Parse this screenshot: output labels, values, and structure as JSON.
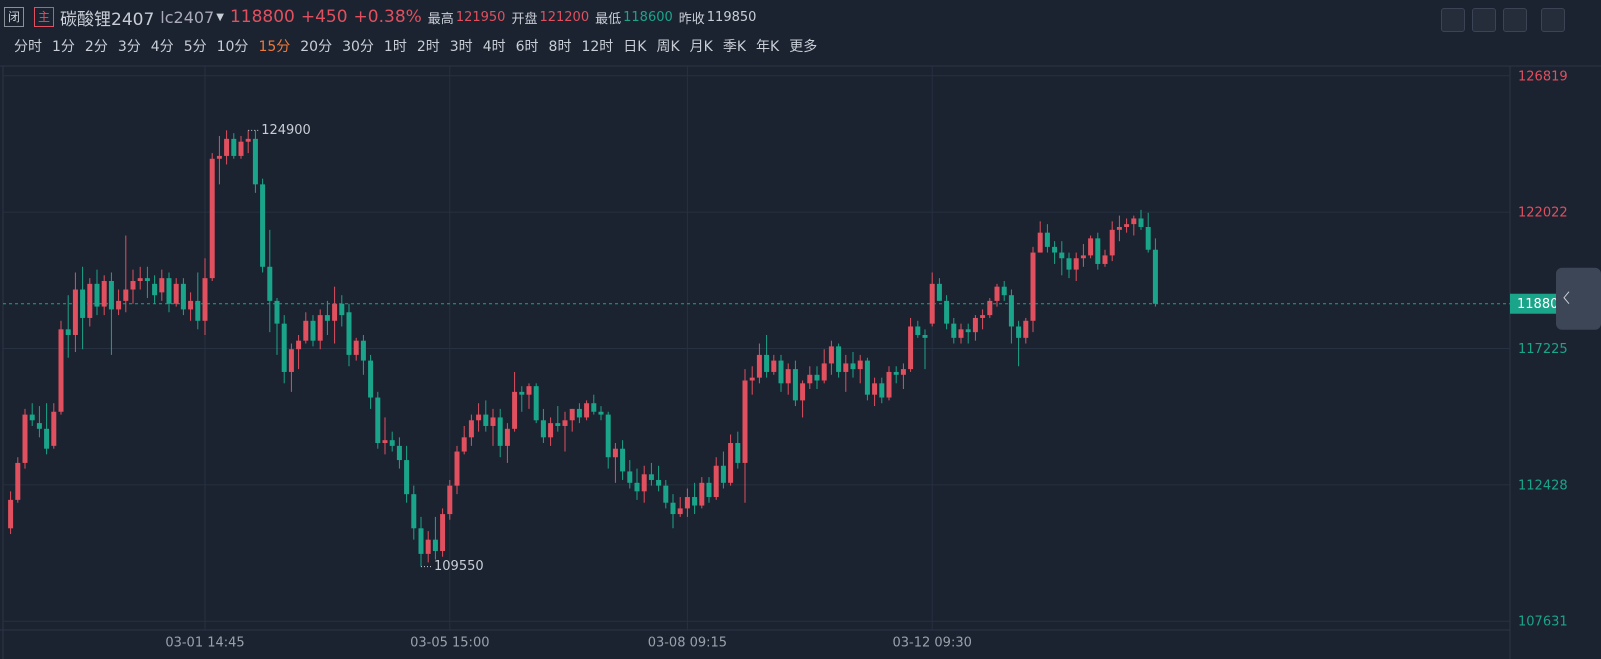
{
  "header": {
    "badges": [
      "闭",
      "主"
    ],
    "name": "碳酸锂2407",
    "code": "lc2407",
    "price": 118800,
    "change": "+450",
    "pct": "+0.38%",
    "stats": [
      {
        "label": "最高",
        "value": 121950
      },
      {
        "label": "开盘",
        "value": 121200
      },
      {
        "label": "最低",
        "value": 118600
      },
      {
        "label": "昨收",
        "value": 119850
      }
    ],
    "periods": [
      "分时",
      "1分",
      "2分",
      "3分",
      "4分",
      "5分",
      "10分",
      "15分",
      "20分",
      "30分",
      "1时",
      "2时",
      "3时",
      "4时",
      "6时",
      "8时",
      "12时",
      "日K",
      "周K",
      "月K",
      "季K",
      "年K",
      "更多"
    ],
    "active_period": 7
  },
  "chart_data": {
    "type": "candlestick",
    "up_color": "#e0505f",
    "down_color": "#1aa58a",
    "grid": true,
    "ylim": [
      107322,
      127093
    ],
    "yticks": [
      126819,
      122022,
      117225,
      112428,
      107631
    ],
    "last_price": 118800,
    "annotations": [
      {
        "index": 33,
        "value": 124900
      },
      {
        "index": 57,
        "value": 109550
      }
    ],
    "categories": [
      null,
      null,
      null,
      null,
      null,
      null,
      null,
      null,
      null,
      null,
      null,
      null,
      null,
      null,
      null,
      null,
      null,
      null,
      null,
      null,
      null,
      null,
      null,
      null,
      null,
      null,
      null,
      "03-01 14:45",
      null,
      null,
      null,
      null,
      null,
      null,
      null,
      null,
      null,
      null,
      null,
      null,
      null,
      null,
      null,
      null,
      null,
      null,
      null,
      null,
      null,
      null,
      null,
      null,
      null,
      null,
      null,
      null,
      null,
      null,
      null,
      null,
      null,
      "03-05 15:00",
      null,
      null,
      null,
      null,
      null,
      null,
      null,
      null,
      null,
      null,
      null,
      null,
      null,
      null,
      null,
      null,
      null,
      null,
      null,
      null,
      null,
      null,
      null,
      null,
      null,
      null,
      null,
      null,
      null,
      null,
      null,
      null,
      "03-08 09:15",
      null,
      null,
      null,
      null,
      null,
      null,
      null,
      null,
      null,
      null,
      null,
      null,
      null,
      null,
      null,
      null,
      null,
      null,
      null,
      null,
      null,
      null,
      null,
      null,
      null,
      null,
      null,
      null,
      null,
      null,
      null,
      null,
      null,
      "03-12 09:30",
      null,
      null,
      null,
      null,
      null,
      null,
      null,
      null,
      null,
      null,
      null,
      null,
      null,
      null,
      null,
      null,
      null,
      null,
      null,
      null,
      null,
      null,
      null,
      null,
      null,
      null,
      null,
      null,
      null,
      null
    ],
    "candles": [
      [
        110900,
        112200,
        110700,
        111900
      ],
      [
        111900,
        113400,
        111800,
        113200
      ],
      [
        113200,
        115100,
        113000,
        114900
      ],
      [
        114900,
        115300,
        114500,
        114700
      ],
      [
        114600,
        115200,
        114100,
        114400
      ],
      [
        114400,
        115300,
        113500,
        113700
      ],
      [
        113800,
        115300,
        113700,
        115000
      ],
      [
        115000,
        118200,
        114900,
        117900
      ],
      [
        117900,
        119100,
        116900,
        117700
      ],
      [
        117700,
        119900,
        117100,
        119300
      ],
      [
        119300,
        120100,
        117200,
        118300
      ],
      [
        118300,
        119700,
        118000,
        119500
      ],
      [
        119500,
        120000,
        118400,
        118700
      ],
      [
        118700,
        119800,
        118400,
        119600
      ],
      [
        119600,
        119900,
        117000,
        118600
      ],
      [
        118600,
        119300,
        118400,
        118900
      ],
      [
        118900,
        121200,
        118500,
        119300
      ],
      [
        119300,
        120000,
        118800,
        119600
      ],
      [
        119600,
        120100,
        119300,
        119700
      ],
      [
        119700,
        120100,
        119000,
        119600
      ],
      [
        119500,
        119800,
        118800,
        119100
      ],
      [
        119200,
        120000,
        118900,
        119700
      ],
      [
        119700,
        119900,
        118500,
        118800
      ],
      [
        118800,
        119700,
        118700,
        119500
      ],
      [
        119500,
        119700,
        118400,
        118600
      ],
      [
        118600,
        119200,
        118200,
        118900
      ],
      [
        118900,
        119900,
        117900,
        118200
      ],
      [
        118200,
        120400,
        117700,
        119700
      ],
      [
        119700,
        124100,
        119600,
        123900
      ],
      [
        123900,
        124700,
        123000,
        124000
      ],
      [
        124000,
        124900,
        123700,
        124600
      ],
      [
        124600,
        124800,
        123900,
        124000
      ],
      [
        124000,
        124700,
        123900,
        124500
      ],
      [
        124500,
        124900,
        124100,
        124600
      ],
      [
        124600,
        124900,
        122700,
        123000
      ],
      [
        123000,
        123200,
        119900,
        120100
      ],
      [
        120100,
        121400,
        117800,
        118900
      ],
      [
        118900,
        119000,
        117000,
        118100
      ],
      [
        118100,
        118400,
        116000,
        116400
      ],
      [
        116400,
        117400,
        115700,
        117200
      ],
      [
        117200,
        117700,
        116500,
        117500
      ],
      [
        117500,
        118500,
        117400,
        118200
      ],
      [
        118200,
        118400,
        117300,
        117500
      ],
      [
        117500,
        118600,
        117200,
        118400
      ],
      [
        118400,
        118900,
        117700,
        118200
      ],
      [
        118200,
        119400,
        117400,
        118800
      ],
      [
        118800,
        119100,
        118000,
        118400
      ],
      [
        118500,
        118800,
        116600,
        117000
      ],
      [
        117000,
        117600,
        116800,
        117500
      ],
      [
        117500,
        117700,
        116300,
        116800
      ],
      [
        116800,
        117000,
        115100,
        115500
      ],
      [
        115500,
        115700,
        113700,
        113900
      ],
      [
        113900,
        114800,
        113500,
        114000
      ],
      [
        114000,
        114300,
        113600,
        113800
      ],
      [
        113800,
        114100,
        113000,
        113300
      ],
      [
        113300,
        113800,
        111800,
        112100
      ],
      [
        112100,
        112400,
        110500,
        110900
      ],
      [
        110900,
        111300,
        109550,
        110000
      ],
      [
        110000,
        110800,
        109700,
        110500
      ],
      [
        110500,
        111300,
        109800,
        110100
      ],
      [
        110100,
        111600,
        109900,
        111400
      ],
      [
        111400,
        112600,
        111200,
        112400
      ],
      [
        112400,
        113800,
        112100,
        113600
      ],
      [
        113600,
        114500,
        113500,
        114100
      ],
      [
        114100,
        114900,
        113800,
        114700
      ],
      [
        114700,
        115300,
        114300,
        114900
      ],
      [
        114900,
        115400,
        114300,
        114500
      ],
      [
        114500,
        115100,
        113800,
        114800
      ],
      [
        114800,
        115100,
        113400,
        113800
      ],
      [
        113800,
        114600,
        113200,
        114400
      ],
      [
        114400,
        116400,
        114300,
        115700
      ],
      [
        115700,
        115900,
        115000,
        115600
      ],
      [
        115600,
        116000,
        115100,
        115900
      ],
      [
        115900,
        116000,
        114600,
        114700
      ],
      [
        114700,
        115100,
        113900,
        114100
      ],
      [
        114100,
        114800,
        113800,
        114600
      ],
      [
        114600,
        115200,
        114300,
        114500
      ],
      [
        114500,
        115000,
        113600,
        114700
      ],
      [
        114700,
        115100,
        114300,
        115100
      ],
      [
        115100,
        115300,
        114600,
        114800
      ],
      [
        114800,
        115400,
        114700,
        115300
      ],
      [
        115300,
        115600,
        114900,
        115000
      ],
      [
        115000,
        115200,
        114700,
        114900
      ],
      [
        114900,
        115000,
        113000,
        113400
      ],
      [
        113400,
        113900,
        112500,
        113700
      ],
      [
        113700,
        114000,
        112600,
        112900
      ],
      [
        112900,
        113300,
        112300,
        112500
      ],
      [
        112500,
        113000,
        111900,
        112200
      ],
      [
        112200,
        113100,
        111800,
        112800
      ],
      [
        112800,
        113200,
        112400,
        112600
      ],
      [
        112600,
        113100,
        112200,
        112400
      ],
      [
        112400,
        112600,
        111600,
        111800
      ],
      [
        111800,
        112100,
        110900,
        111400
      ],
      [
        111400,
        112000,
        111300,
        111600
      ],
      [
        111600,
        112300,
        111300,
        112000
      ],
      [
        112000,
        112500,
        111400,
        111700
      ],
      [
        111700,
        112700,
        111600,
        112500
      ],
      [
        112500,
        112700,
        111800,
        112000
      ],
      [
        112000,
        113400,
        111900,
        113100
      ],
      [
        113100,
        113600,
        112300,
        112500
      ],
      [
        112500,
        114200,
        112400,
        113900
      ],
      [
        113900,
        114300,
        113000,
        113200
      ],
      [
        113200,
        116500,
        111800,
        116100
      ],
      [
        116100,
        116600,
        115600,
        116200
      ],
      [
        116200,
        117400,
        116000,
        117000
      ],
      [
        117000,
        117700,
        116200,
        116400
      ],
      [
        116400,
        117000,
        116300,
        116800
      ],
      [
        116800,
        117000,
        115700,
        116000
      ],
      [
        116000,
        116700,
        115600,
        116500
      ],
      [
        116500,
        116800,
        115200,
        115400
      ],
      [
        115400,
        116100,
        114800,
        116000
      ],
      [
        116000,
        116600,
        115800,
        116300
      ],
      [
        116300,
        116600,
        115800,
        116100
      ],
      [
        116100,
        117200,
        116000,
        116700
      ],
      [
        116700,
        117500,
        116300,
        117300
      ],
      [
        117300,
        117400,
        116200,
        116400
      ],
      [
        116400,
        117000,
        115700,
        116700
      ],
      [
        116700,
        117100,
        116200,
        116500
      ],
      [
        116500,
        117000,
        116000,
        116800
      ],
      [
        116800,
        116900,
        115400,
        115600
      ],
      [
        115600,
        116200,
        115200,
        116000
      ],
      [
        116000,
        116200,
        115300,
        115500
      ],
      [
        115500,
        116600,
        115400,
        116400
      ],
      [
        116400,
        116600,
        116000,
        116300
      ],
      [
        116300,
        116700,
        115800,
        116500
      ],
      [
        116500,
        118300,
        116400,
        118000
      ],
      [
        118000,
        118200,
        117600,
        117700
      ],
      [
        117700,
        117900,
        116500,
        117600
      ],
      [
        118100,
        119900,
        118000,
        119500
      ],
      [
        119500,
        119700,
        118900,
        118900
      ],
      [
        118900,
        119100,
        117900,
        118100
      ],
      [
        118100,
        118300,
        117400,
        117600
      ],
      [
        117600,
        118100,
        117400,
        117900
      ],
      [
        117900,
        118100,
        117400,
        117800
      ],
      [
        117800,
        118400,
        117500,
        118300
      ],
      [
        118300,
        118600,
        117900,
        118400
      ],
      [
        118400,
        119000,
        118300,
        118900
      ],
      [
        118900,
        119500,
        118700,
        119400
      ],
      [
        119400,
        119600,
        118900,
        119100
      ],
      [
        119100,
        119300,
        117400,
        118000
      ],
      [
        118000,
        118200,
        116600,
        117600
      ],
      [
        117600,
        118300,
        117400,
        118200
      ],
      [
        118200,
        120800,
        117800,
        120600
      ],
      [
        120600,
        121700,
        120600,
        121300
      ],
      [
        121300,
        121600,
        120600,
        120800
      ],
      [
        120800,
        121000,
        120200,
        120600
      ],
      [
        120600,
        121000,
        119800,
        120400
      ],
      [
        120400,
        120600,
        119700,
        120000
      ],
      [
        120000,
        120600,
        119600,
        120400
      ],
      [
        120400,
        120900,
        120100,
        120500
      ],
      [
        120500,
        121200,
        120400,
        121100
      ],
      [
        121100,
        121300,
        120000,
        120200
      ],
      [
        120200,
        120700,
        120100,
        120500
      ],
      [
        120500,
        121700,
        120300,
        121400
      ],
      [
        121400,
        121900,
        121000,
        121500
      ],
      [
        121500,
        121800,
        121300,
        121600
      ],
      [
        121600,
        121900,
        121200,
        121800
      ],
      [
        121800,
        122100,
        121400,
        121500
      ],
      [
        121500,
        122000,
        120600,
        120700
      ],
      [
        120700,
        121100,
        118700,
        118800
      ]
    ]
  }
}
